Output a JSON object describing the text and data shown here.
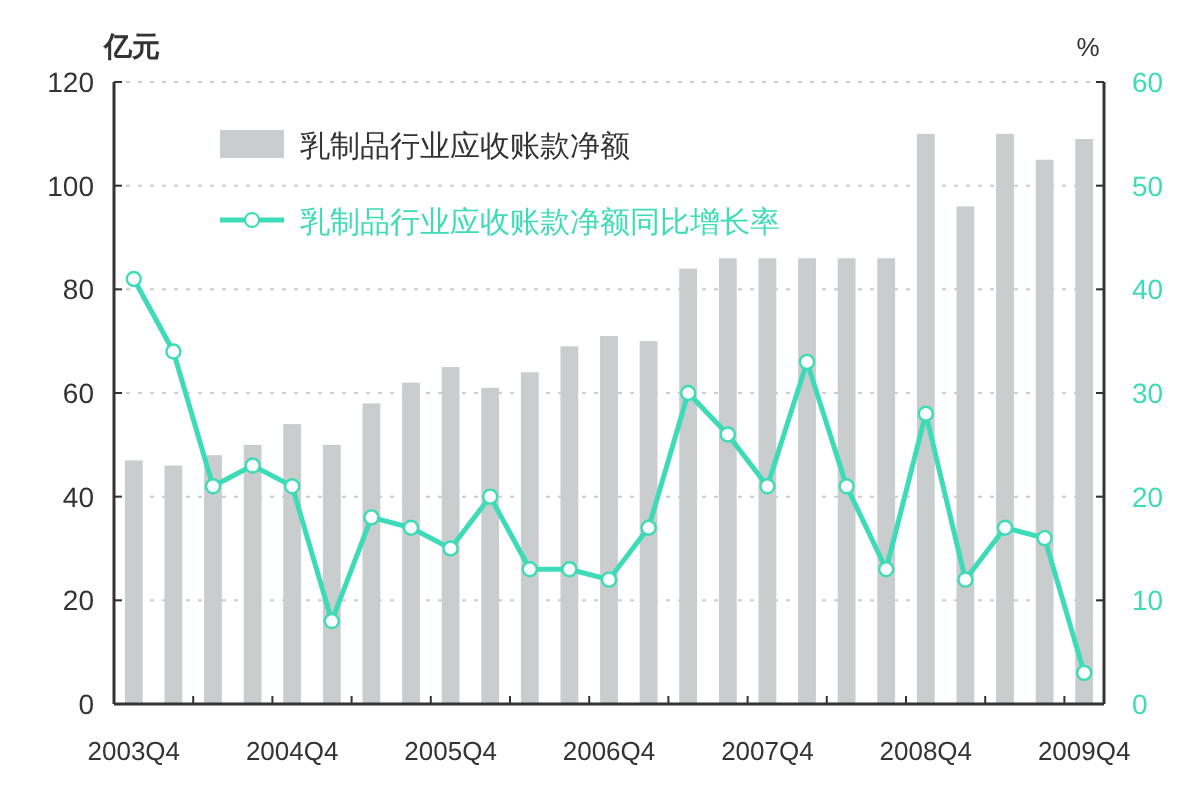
{
  "chart_data": {
    "type": "bar",
    "categories": [
      "2003Q4",
      null,
      null,
      null,
      "2004Q4",
      null,
      null,
      null,
      "2005Q4",
      null,
      null,
      null,
      "2006Q4",
      null,
      null,
      null,
      "2007Q4",
      null,
      null,
      null,
      "2008Q4",
      null,
      null,
      null,
      "2009Q4"
    ],
    "ylabel": "亿元",
    "y2label": "%",
    "ylim": [
      0,
      120
    ],
    "yticks": [
      0,
      20,
      40,
      60,
      80,
      100,
      120
    ],
    "y2lim": [
      0,
      60
    ],
    "y2ticks": [
      0,
      10,
      20,
      30,
      40,
      50,
      60
    ],
    "series": [
      {
        "name": "乳制品行业应收账款净额",
        "color": "#c9cdcd",
        "values": [
          47,
          46,
          48,
          50,
          54,
          50,
          58,
          62,
          65,
          61,
          64,
          69,
          71,
          70,
          84,
          86,
          86,
          86,
          86,
          86,
          110,
          96,
          110,
          105,
          109
        ]
      },
      {
        "name": "乳制品行业应收账款净额同比增长率",
        "type": "line",
        "axis": "y2",
        "color": "#3ddbb8",
        "marker": "circle",
        "values": [
          41,
          34,
          21,
          23,
          21,
          8,
          18,
          17,
          15,
          20,
          13,
          13,
          12,
          17,
          30,
          26,
          21,
          33,
          21,
          13,
          28,
          12,
          17,
          16,
          3
        ]
      }
    ],
    "grid": "y",
    "legend": "top left"
  }
}
